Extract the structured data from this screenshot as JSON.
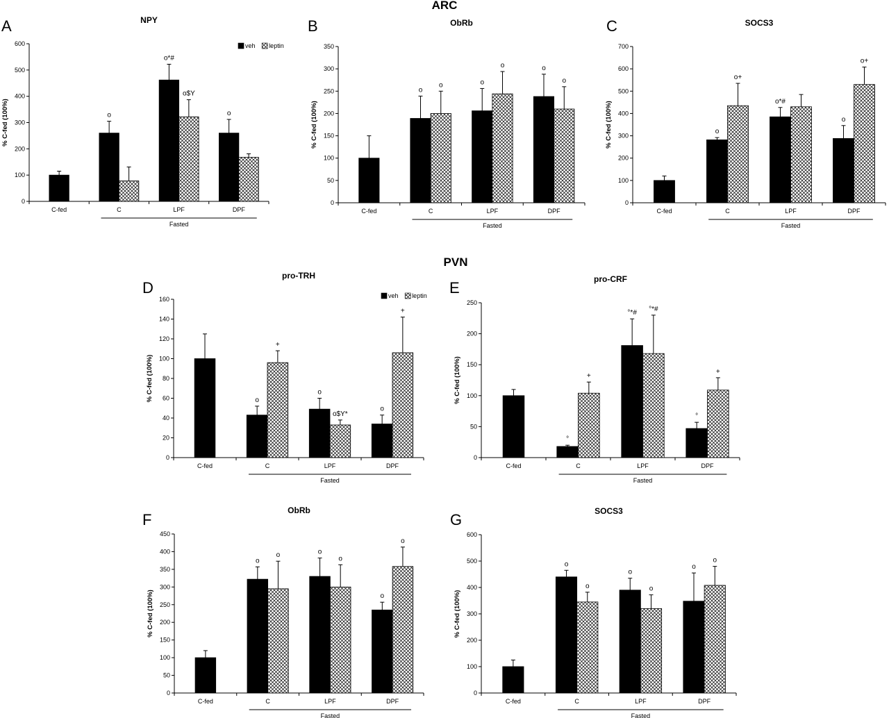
{
  "figure": {
    "section_titles": [
      "ARC",
      "PVN"
    ],
    "colors": {
      "veh": "#000000",
      "leptin_pattern": "crosshatch",
      "axis": "#000000"
    }
  },
  "chart_data": [
    {
      "panel": "A",
      "type": "bar",
      "title": "NPY",
      "ylabel": "% C-fed (100%)",
      "ylim": [
        0,
        600
      ],
      "yticks": [
        0,
        100,
        200,
        300,
        400,
        500,
        600
      ],
      "categories": [
        "C-fed",
        "C",
        "LPF",
        "DPF"
      ],
      "group_label": "Fasted",
      "legend": {
        "show": true,
        "items": [
          "veh",
          "leptin"
        ],
        "position": "top-right"
      },
      "series": [
        {
          "name": "veh",
          "values": [
            100,
            260,
            462,
            260
          ],
          "errors": [
            15,
            45,
            60,
            52
          ],
          "annotations": [
            "",
            "o",
            "o*#",
            "o"
          ]
        },
        {
          "name": "leptin",
          "values": [
            null,
            78,
            322,
            168
          ],
          "errors": [
            null,
            53,
            65,
            13
          ],
          "annotations": [
            "",
            "",
            "o$Y",
            ""
          ]
        }
      ]
    },
    {
      "panel": "B",
      "type": "bar",
      "title": "ObRb",
      "ylabel": "% C-fed (100%)",
      "ylim": [
        0,
        350
      ],
      "yticks": [
        0,
        50,
        100,
        150,
        200,
        250,
        300,
        350
      ],
      "categories": [
        "C-fed",
        "C",
        "LPF",
        "DPF"
      ],
      "group_label": "Fasted",
      "legend": {
        "show": false
      },
      "series": [
        {
          "name": "veh",
          "values": [
            100,
            189,
            206,
            238
          ],
          "errors": [
            50,
            50,
            50,
            50
          ],
          "annotations": [
            "",
            "o",
            "o",
            "o"
          ]
        },
        {
          "name": "leptin",
          "values": [
            null,
            200,
            244,
            210
          ],
          "errors": [
            null,
            50,
            50,
            50
          ],
          "annotations": [
            "",
            "o",
            "o",
            "o"
          ]
        }
      ]
    },
    {
      "panel": "C",
      "type": "bar",
      "title": "SOCS3",
      "ylabel": "% C-fed (100%)",
      "ylim": [
        0,
        700
      ],
      "yticks": [
        0,
        100,
        200,
        300,
        400,
        500,
        600,
        700
      ],
      "categories": [
        "C-fed",
        "C",
        "LPF",
        "DPF"
      ],
      "group_label": "Fasted",
      "legend": {
        "show": false
      },
      "series": [
        {
          "name": "veh",
          "values": [
            100,
            282,
            385,
            288
          ],
          "errors": [
            20,
            10,
            42,
            58
          ],
          "annotations": [
            "",
            "o",
            "o*#",
            "o"
          ]
        },
        {
          "name": "leptin",
          "values": [
            null,
            435,
            430,
            530
          ],
          "errors": [
            null,
            100,
            55,
            78
          ],
          "annotations": [
            "",
            "o+",
            "",
            "o+"
          ]
        }
      ]
    },
    {
      "panel": "D",
      "type": "bar",
      "title": "pro-TRH",
      "ylabel": "% C-fed (100%)",
      "ylim": [
        0,
        160
      ],
      "yticks": [
        0,
        20,
        40,
        60,
        80,
        100,
        120,
        140,
        160
      ],
      "categories": [
        "C-fed",
        "C",
        "LPF",
        "DPF"
      ],
      "group_label": "Fasted",
      "legend": {
        "show": true,
        "items": [
          "veh",
          "leptin"
        ],
        "position": "top-right"
      },
      "series": [
        {
          "name": "veh",
          "values": [
            100,
            43,
            49,
            34
          ],
          "errors": [
            25,
            9,
            11,
            9
          ],
          "annotations": [
            "",
            "o",
            "o",
            "o"
          ]
        },
        {
          "name": "leptin",
          "values": [
            null,
            96,
            33,
            106
          ],
          "errors": [
            null,
            12,
            5,
            36
          ],
          "annotations": [
            "",
            "+",
            "o$Y*",
            "+"
          ]
        }
      ]
    },
    {
      "panel": "E",
      "type": "bar",
      "title": "pro-CRF",
      "ylabel": "% C-fed (100%)",
      "ylim": [
        0,
        250
      ],
      "yticks": [
        0,
        50,
        100,
        150,
        200,
        250
      ],
      "categories": [
        "C-fed",
        "C",
        "LPF",
        "DPF"
      ],
      "group_label": "Fasted",
      "legend": {
        "show": false
      },
      "series": [
        {
          "name": "veh",
          "values": [
            100,
            18,
            181,
            47
          ],
          "errors": [
            10,
            2,
            43,
            10
          ],
          "annotations": [
            "",
            "°",
            "°*#",
            "°"
          ]
        },
        {
          "name": "leptin",
          "values": [
            null,
            104,
            168,
            109
          ],
          "errors": [
            null,
            18,
            62,
            20
          ],
          "annotations": [
            "",
            "+",
            "°*#",
            "+"
          ]
        }
      ]
    },
    {
      "panel": "F",
      "type": "bar",
      "title": "ObRb",
      "ylabel": "% C-fed (100%)",
      "ylim": [
        0,
        450
      ],
      "yticks": [
        0,
        50,
        100,
        150,
        200,
        250,
        300,
        350,
        400,
        450
      ],
      "categories": [
        "C-fed",
        "C",
        "LPF",
        "DPF"
      ],
      "group_label": "Fasted",
      "legend": {
        "show": false
      },
      "series": [
        {
          "name": "veh",
          "values": [
            100,
            322,
            330,
            235
          ],
          "errors": [
            20,
            35,
            52,
            22
          ],
          "annotations": [
            "",
            "o",
            "o",
            "o"
          ]
        },
        {
          "name": "leptin",
          "values": [
            null,
            295,
            300,
            358
          ],
          "errors": [
            null,
            78,
            63,
            55
          ],
          "annotations": [
            "",
            "o",
            "o",
            "o"
          ]
        }
      ]
    },
    {
      "panel": "G",
      "type": "bar",
      "title": "SOCS3",
      "ylabel": "% C-fed (100%)",
      "ylim": [
        0,
        600
      ],
      "yticks": [
        0,
        100,
        200,
        300,
        400,
        500,
        600
      ],
      "categories": [
        "C-fed",
        "C",
        "LPF",
        "DPF"
      ],
      "group_label": "Fasted",
      "legend": {
        "show": false
      },
      "series": [
        {
          "name": "veh",
          "values": [
            100,
            440,
            390,
            348
          ],
          "errors": [
            25,
            25,
            45,
            107
          ],
          "annotations": [
            "",
            "o",
            "o",
            "o"
          ]
        },
        {
          "name": "leptin",
          "values": [
            null,
            345,
            320,
            408
          ],
          "errors": [
            null,
            37,
            52,
            72
          ],
          "annotations": [
            "",
            "o",
            "o",
            "o"
          ]
        }
      ]
    }
  ]
}
